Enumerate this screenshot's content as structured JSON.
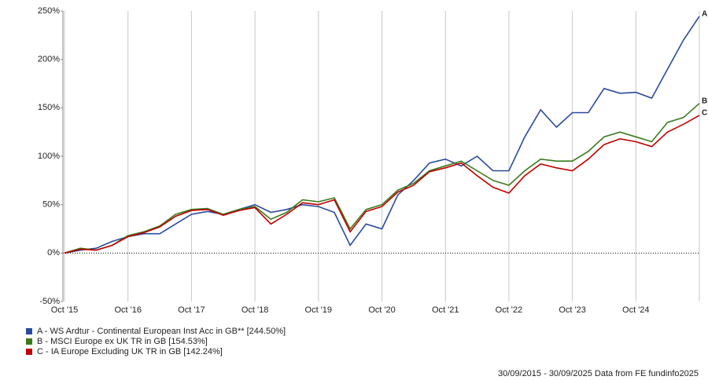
{
  "chart_data": {
    "type": "line",
    "x": [
      "Sep '15",
      "Dec '15",
      "Mar '16",
      "Jun '16",
      "Sep '16",
      "Dec '16",
      "Mar '17",
      "Jun '17",
      "Sep '17",
      "Dec '17",
      "Mar '18",
      "Jun '18",
      "Sep '18",
      "Dec '18",
      "Mar '19",
      "Jun '19",
      "Sep '19",
      "Dec '19",
      "Mar '20",
      "Jun '20",
      "Sep '20",
      "Dec '20",
      "Mar '21",
      "Jun '21",
      "Sep '21",
      "Dec '21",
      "Mar '22",
      "Jun '22",
      "Sep '22",
      "Dec '22",
      "Mar '23",
      "Jun '23",
      "Sep '23",
      "Dec '23",
      "Mar '24",
      "Jun '24",
      "Sep '24",
      "Dec '24",
      "Mar '25",
      "Jun '25",
      "Sep '25"
    ],
    "series": [
      {
        "name": "A - WS Ardtur - Continental European Inst Acc in GB** [244.50%]",
        "tag": "A",
        "color": "#2a4b9b",
        "values": [
          0,
          3,
          5,
          12,
          17,
          20,
          20,
          30,
          40,
          43,
          40,
          45,
          50,
          42,
          45,
          50,
          48,
          42,
          8,
          30,
          25,
          60,
          75,
          93,
          97,
          90,
          100,
          85,
          85,
          120,
          148,
          130,
          145,
          145,
          170,
          165,
          166,
          160,
          190,
          220,
          244.5
        ]
      },
      {
        "name": "B - MSCI Europe ex UK TR in GB [154.53%]",
        "tag": "B",
        "color": "#3a7a1c",
        "values": [
          0,
          5,
          3,
          8,
          18,
          22,
          28,
          40,
          45,
          46,
          40,
          45,
          48,
          35,
          42,
          55,
          53,
          57,
          25,
          45,
          50,
          65,
          72,
          85,
          90,
          95,
          85,
          75,
          70,
          85,
          97,
          95,
          95,
          105,
          120,
          125,
          120,
          115,
          135,
          140,
          154.53
        ]
      },
      {
        "name": "C - IA Europe Excluding UK TR in GB [142.24%]",
        "tag": "C",
        "color": "#c00000",
        "values": [
          0,
          4,
          3,
          8,
          17,
          21,
          27,
          38,
          44,
          45,
          39,
          44,
          47,
          30,
          40,
          52,
          50,
          55,
          22,
          43,
          48,
          63,
          70,
          84,
          88,
          93,
          80,
          68,
          62,
          80,
          92,
          88,
          85,
          97,
          112,
          118,
          115,
          110,
          125,
          133,
          142.24
        ]
      }
    ],
    "xticks": [
      "Oct '15",
      "Oct '16",
      "Oct '17",
      "Oct '18",
      "Oct '19",
      "Oct '20",
      "Oct '21",
      "Oct '22",
      "Oct '23",
      "Oct '24"
    ],
    "ylim": [
      -50,
      250
    ],
    "yticks": [
      {
        "value": -50,
        "label": "-50%"
      },
      {
        "value": 0,
        "label": "0%"
      },
      {
        "value": 50,
        "label": "50%"
      },
      {
        "value": 100,
        "label": "100%"
      },
      {
        "value": 150,
        "label": "150%"
      },
      {
        "value": 200,
        "label": "200%"
      },
      {
        "value": 250,
        "label": "250%"
      }
    ],
    "grid": true,
    "footer": "30/09/2015 - 30/09/2025 Data from FE fundinfo2025"
  }
}
